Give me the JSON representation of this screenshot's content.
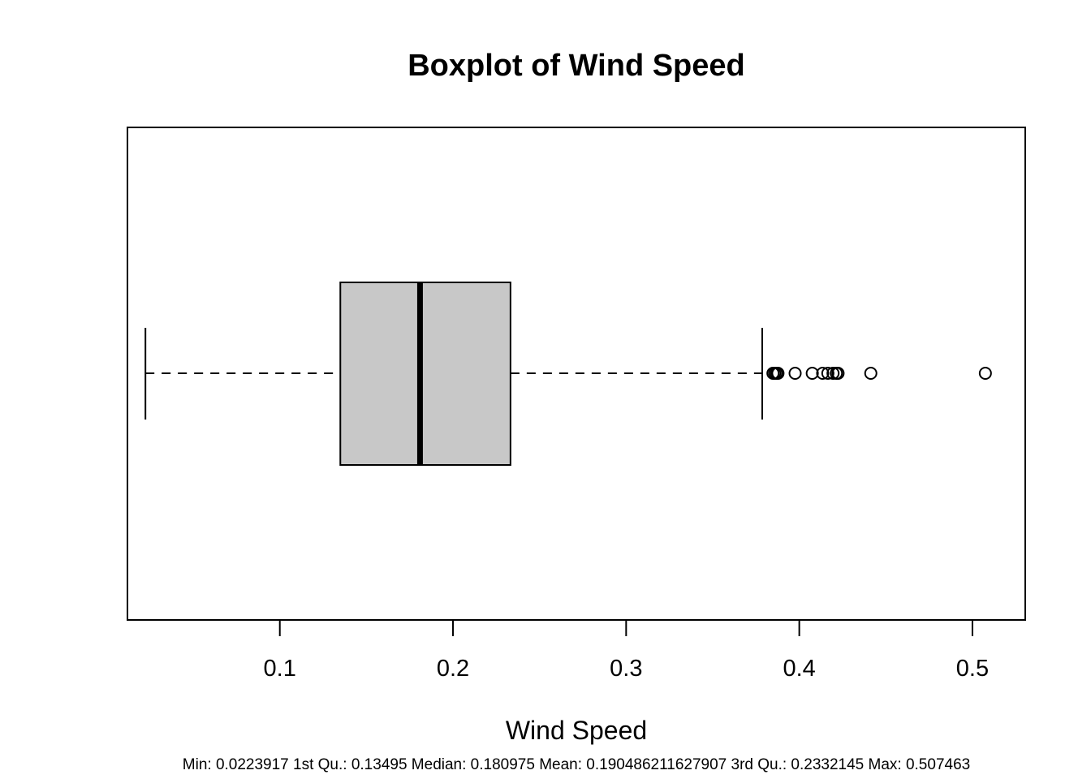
{
  "chart_data": {
    "type": "boxplot",
    "orientation": "horizontal",
    "title": "Boxplot of Wind Speed",
    "xlabel": "Wind Speed",
    "xlim": [
      0.012,
      0.5305
    ],
    "xticks": [
      0.1,
      0.2,
      0.3,
      0.4,
      0.5
    ],
    "xtick_labels": [
      "0.1",
      "0.2",
      "0.3",
      "0.4",
      "0.5"
    ],
    "box": {
      "whisker_low": 0.0223917,
      "q1": 0.13495,
      "median": 0.180975,
      "q3": 0.2332145,
      "whisker_high": 0.3786
    },
    "outliers": [
      0.3848,
      0.3858,
      0.3868,
      0.3877,
      0.3976,
      0.4075,
      0.4135,
      0.4165,
      0.4195,
      0.4214,
      0.4224,
      0.4413,
      0.507463
    ],
    "box_fill": "#c8c8c8",
    "line_color": "#000000",
    "summary_text": "Min: 0.0223917 1st Qu.: 0.13495 Median: 0.180975 Mean: 0.190486211627907 3rd Qu.: 0.2332145 Max: 0.507463"
  }
}
